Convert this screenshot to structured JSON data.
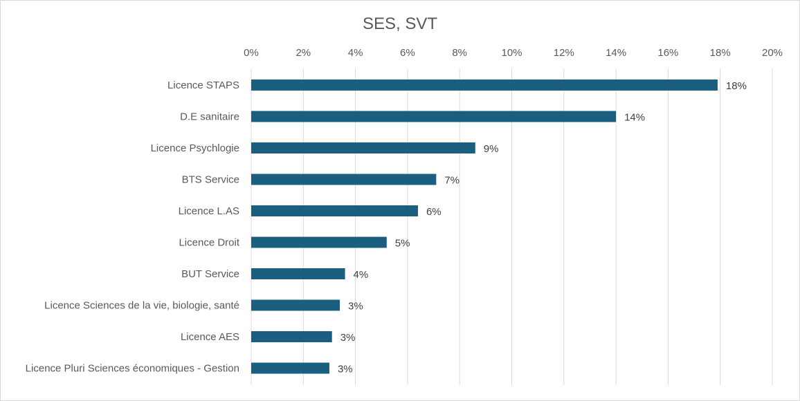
{
  "chart_data": {
    "type": "bar",
    "orientation": "horizontal",
    "title": "SES, SVT",
    "xlabel": "",
    "ylabel": "",
    "xlim": [
      0,
      20
    ],
    "x_ticks": [
      "0%",
      "2%",
      "4%",
      "6%",
      "8%",
      "10%",
      "12%",
      "14%",
      "16%",
      "18%",
      "20%"
    ],
    "x_tick_values": [
      0,
      2,
      4,
      6,
      8,
      10,
      12,
      14,
      16,
      18,
      20
    ],
    "x_axis_position": "top",
    "grid": true,
    "bar_color": "#1a5f7f",
    "categories": [
      "Licence STAPS",
      "D.E sanitaire",
      "Licence Psychlogie",
      "BTS Service",
      "Licence L.AS",
      "Licence Droit",
      "BUT Service",
      "Licence Sciences de la vie, biologie, santé",
      "Licence AES",
      "Licence Pluri Sciences économiques - Gestion"
    ],
    "values": [
      17.9,
      14.0,
      8.6,
      7.1,
      6.4,
      5.2,
      3.6,
      3.4,
      3.1,
      3.0
    ],
    "data_labels": [
      "18%",
      "14%",
      "9%",
      "7%",
      "6%",
      "5%",
      "4%",
      "3%",
      "3%",
      "3%"
    ]
  }
}
